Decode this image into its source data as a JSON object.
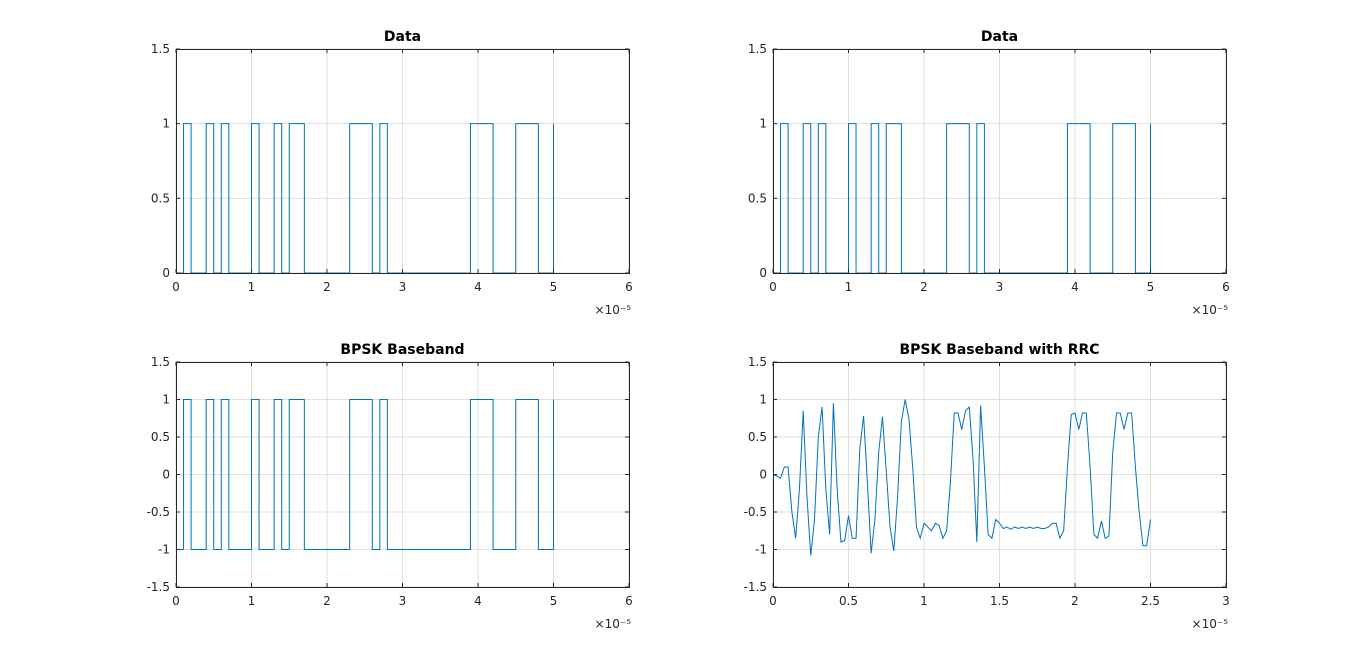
{
  "figure": {
    "background": "#ffffff",
    "axes_color": "#262626",
    "grid_color": "#dfdfdf",
    "line_color": "#0072bd"
  },
  "chart_data": [
    {
      "type": "line",
      "style": "stairs",
      "title": "Data",
      "xlabel": "",
      "ylabel": "",
      "xlim": [
        0,
        6e-05
      ],
      "ylim": [
        0,
        1.5
      ],
      "x_exponent_label": "×10⁻⁵",
      "grid": true,
      "xticks": [
        0,
        1e-05,
        2e-05,
        3e-05,
        4e-05,
        5e-05,
        6e-05
      ],
      "xtick_labels": [
        "0",
        "1",
        "2",
        "3",
        "4",
        "5",
        "6"
      ],
      "yticks": [
        0,
        0.5,
        1,
        1.5
      ],
      "ytick_labels": [
        "0",
        "0.5",
        "1",
        "1.5"
      ],
      "series": [
        {
          "x": [
            0,
            1e-06,
            2e-06,
            3e-06,
            4e-06,
            5e-06,
            6e-06,
            7e-06,
            8e-06,
            9e-06,
            1e-05,
            1.1e-05,
            1.2e-05,
            1.3e-05,
            1.4e-05,
            1.5e-05,
            1.6e-05,
            1.7e-05,
            1.8e-05,
            1.9e-05,
            2e-05,
            2.1e-05,
            2.2e-05,
            2.3e-05,
            2.4e-05,
            2.5e-05,
            2.6e-05,
            2.7e-05,
            2.8e-05,
            2.9e-05,
            3e-05,
            3.1e-05,
            3.2e-05,
            3.3e-05,
            3.4e-05,
            3.5e-05,
            3.6e-05,
            3.7e-05,
            3.8e-05,
            3.9e-05,
            4e-05,
            4.1e-05,
            4.2e-05,
            4.3e-05,
            4.4e-05,
            4.5e-05,
            4.6e-05,
            4.7e-05,
            4.8e-05,
            4.9e-05,
            5e-05
          ],
          "y": [
            0,
            1,
            0,
            0,
            1,
            0,
            1,
            0,
            0,
            0,
            1,
            0,
            0,
            1,
            0,
            1,
            1,
            0,
            0,
            0,
            0,
            0,
            0,
            1,
            1,
            1,
            0,
            1,
            0,
            0,
            0,
            0,
            0,
            0,
            0,
            0,
            0,
            0,
            0,
            1,
            1,
            1,
            0,
            0,
            0,
            1,
            1,
            1,
            0,
            0,
            1
          ]
        }
      ]
    },
    {
      "type": "line",
      "style": "stairs",
      "title": "Data",
      "xlabel": "",
      "ylabel": "",
      "xlim": [
        0,
        6e-05
      ],
      "ylim": [
        0,
        1.5
      ],
      "x_exponent_label": "×10⁻⁵",
      "grid": true,
      "xticks": [
        0,
        1e-05,
        2e-05,
        3e-05,
        4e-05,
        5e-05,
        6e-05
      ],
      "xtick_labels": [
        "0",
        "1",
        "2",
        "3",
        "4",
        "5",
        "6"
      ],
      "yticks": [
        0,
        0.5,
        1,
        1.5
      ],
      "ytick_labels": [
        "0",
        "0.5",
        "1",
        "1.5"
      ],
      "series": [
        {
          "x": [
            0,
            1e-06,
            2e-06,
            3e-06,
            4e-06,
            5e-06,
            6e-06,
            7e-06,
            8e-06,
            9e-06,
            1e-05,
            1.1e-05,
            1.2e-05,
            1.3e-05,
            1.4e-05,
            1.5e-05,
            1.6e-05,
            1.7e-05,
            1.8e-05,
            1.9e-05,
            2e-05,
            2.1e-05,
            2.2e-05,
            2.3e-05,
            2.4e-05,
            2.5e-05,
            2.6e-05,
            2.7e-05,
            2.8e-05,
            2.9e-05,
            3e-05,
            3.1e-05,
            3.2e-05,
            3.3e-05,
            3.4e-05,
            3.5e-05,
            3.6e-05,
            3.7e-05,
            3.8e-05,
            3.9e-05,
            4e-05,
            4.1e-05,
            4.2e-05,
            4.3e-05,
            4.4e-05,
            4.5e-05,
            4.6e-05,
            4.7e-05,
            4.8e-05,
            4.9e-05,
            5e-05
          ],
          "y": [
            0,
            1,
            0,
            0,
            1,
            0,
            1,
            0,
            0,
            0,
            1,
            0,
            0,
            1,
            0,
            1,
            1,
            0,
            0,
            0,
            0,
            0,
            0,
            1,
            1,
            1,
            0,
            1,
            0,
            0,
            0,
            0,
            0,
            0,
            0,
            0,
            0,
            0,
            0,
            1,
            1,
            1,
            0,
            0,
            0,
            1,
            1,
            1,
            0,
            0,
            1
          ]
        }
      ]
    },
    {
      "type": "line",
      "style": "stairs",
      "title": "BPSK Baseband",
      "xlabel": "",
      "ylabel": "",
      "xlim": [
        0,
        6e-05
      ],
      "ylim": [
        -1.5,
        1.5
      ],
      "x_exponent_label": "×10⁻⁵",
      "grid": true,
      "xticks": [
        0,
        1e-05,
        2e-05,
        3e-05,
        4e-05,
        5e-05,
        6e-05
      ],
      "xtick_labels": [
        "0",
        "1",
        "2",
        "3",
        "4",
        "5",
        "6"
      ],
      "yticks": [
        -1.5,
        -1,
        -0.5,
        0,
        0.5,
        1,
        1.5
      ],
      "ytick_labels": [
        "-1.5",
        "-1",
        "-0.5",
        "0",
        "0.5",
        "1",
        "1.5"
      ],
      "series": [
        {
          "x": [
            0,
            1e-06,
            2e-06,
            3e-06,
            4e-06,
            5e-06,
            6e-06,
            7e-06,
            8e-06,
            9e-06,
            1e-05,
            1.1e-05,
            1.2e-05,
            1.3e-05,
            1.4e-05,
            1.5e-05,
            1.6e-05,
            1.7e-05,
            1.8e-05,
            1.9e-05,
            2e-05,
            2.1e-05,
            2.2e-05,
            2.3e-05,
            2.4e-05,
            2.5e-05,
            2.6e-05,
            2.7e-05,
            2.8e-05,
            2.9e-05,
            3e-05,
            3.1e-05,
            3.2e-05,
            3.3e-05,
            3.4e-05,
            3.5e-05,
            3.6e-05,
            3.7e-05,
            3.8e-05,
            3.9e-05,
            4e-05,
            4.1e-05,
            4.2e-05,
            4.3e-05,
            4.4e-05,
            4.5e-05,
            4.6e-05,
            4.7e-05,
            4.8e-05,
            4.9e-05,
            5e-05
          ],
          "y": [
            -1,
            1,
            -1,
            -1,
            1,
            -1,
            1,
            -1,
            -1,
            -1,
            1,
            -1,
            -1,
            1,
            -1,
            1,
            1,
            -1,
            -1,
            -1,
            -1,
            -1,
            -1,
            1,
            1,
            1,
            -1,
            1,
            -1,
            -1,
            -1,
            -1,
            -1,
            -1,
            -1,
            -1,
            -1,
            -1,
            -1,
            1,
            1,
            1,
            -1,
            -1,
            -1,
            1,
            1,
            1,
            -1,
            -1,
            1
          ]
        }
      ]
    },
    {
      "type": "line",
      "style": "line",
      "title": "BPSK Baseband with RRC",
      "xlabel": "",
      "ylabel": "",
      "xlim": [
        0,
        3e-05
      ],
      "ylim": [
        -1.5,
        1.5
      ],
      "x_exponent_label": "×10⁻⁵",
      "grid": true,
      "xticks": [
        0,
        5e-06,
        1e-05,
        1.5e-05,
        2e-05,
        2.5e-05,
        3e-05
      ],
      "xtick_labels": [
        "0",
        "0.5",
        "1",
        "1.5",
        "2",
        "2.5",
        "3"
      ],
      "yticks": [
        -1.5,
        -1,
        -0.5,
        0,
        0.5,
        1,
        1.5
      ],
      "ytick_labels": [
        "-1.5",
        "-1",
        "-0.5",
        "0",
        "0.5",
        "1",
        "1.5"
      ],
      "series": [
        {
          "x": [
            0,
            2.5e-07,
            5e-07,
            7.5e-07,
            1e-06,
            1.25e-06,
            1.5e-06,
            1.75e-06,
            2e-06,
            2.25e-06,
            2.5e-06,
            2.75e-06,
            3e-06,
            3.25e-06,
            3.5e-06,
            3.75e-06,
            4e-06,
            4.25e-06,
            4.5e-06,
            4.75e-06,
            5e-06,
            5.25e-06,
            5.5e-06,
            5.75e-06,
            6e-06,
            6.25e-06,
            6.5e-06,
            6.75e-06,
            7e-06,
            7.25e-06,
            7.5e-06,
            7.75e-06,
            8e-06,
            8.25e-06,
            8.5e-06,
            8.75e-06,
            9e-06,
            9.25e-06,
            9.5e-06,
            9.75e-06,
            1e-05,
            1.025e-05,
            1.05e-05,
            1.075e-05,
            1.1e-05,
            1.125e-05,
            1.15e-05,
            1.175e-05,
            1.2e-05,
            1.225e-05,
            1.25e-05,
            1.275e-05,
            1.3e-05,
            1.325e-05,
            1.35e-05,
            1.375e-05,
            1.4e-05,
            1.425e-05,
            1.45e-05,
            1.475e-05,
            1.5e-05,
            1.525e-05,
            1.55e-05,
            1.575e-05,
            1.6e-05,
            1.625e-05,
            1.65e-05,
            1.675e-05,
            1.7e-05,
            1.725e-05,
            1.75e-05,
            1.775e-05,
            1.8e-05,
            1.825e-05,
            1.85e-05,
            1.875e-05,
            1.9e-05,
            1.925e-05,
            1.95e-05,
            1.975e-05,
            2e-05,
            2.025e-05,
            2.05e-05,
            2.075e-05,
            2.1e-05,
            2.125e-05,
            2.15e-05,
            2.175e-05,
            2.2e-05,
            2.225e-05,
            2.25e-05,
            2.275e-05,
            2.3e-05,
            2.325e-05,
            2.35e-05,
            2.375e-05,
            2.4e-05,
            2.425e-05,
            2.45e-05,
            2.475e-05,
            2.5e-05
          ],
          "y": [
            0,
            -0.02,
            -0.05,
            0.1,
            0.1,
            -0.5,
            -0.85,
            -0.2,
            0.85,
            -0.3,
            -1.08,
            -0.6,
            0.5,
            0.9,
            -0.2,
            -0.8,
            0.95,
            -0.2,
            -0.9,
            -0.88,
            -0.55,
            -0.85,
            -0.85,
            0.35,
            0.78,
            -0.1,
            -1.05,
            -0.6,
            0.3,
            0.77,
            0.05,
            -0.7,
            -1.02,
            -0.3,
            0.7,
            1.0,
            0.75,
            0.1,
            -0.7,
            -0.85,
            -0.65,
            -0.7,
            -0.75,
            -0.65,
            -0.68,
            -0.85,
            -0.75,
            -0.1,
            0.82,
            0.82,
            0.6,
            0.85,
            0.9,
            0.2,
            -0.9,
            0.92,
            0.1,
            -0.8,
            -0.85,
            -0.6,
            -0.65,
            -0.72,
            -0.7,
            -0.73,
            -0.7,
            -0.72,
            -0.7,
            -0.72,
            -0.7,
            -0.72,
            -0.7,
            -0.72,
            -0.72,
            -0.7,
            -0.65,
            -0.65,
            -0.85,
            -0.75,
            0.1,
            0.8,
            0.82,
            0.6,
            0.82,
            0.82,
            0.1,
            -0.8,
            -0.85,
            -0.62,
            -0.85,
            -0.82,
            0.3,
            0.82,
            0.82,
            0.6,
            0.82,
            0.82,
            0.1,
            -0.5,
            -0.95,
            -0.95,
            -0.6
          ]
        }
      ]
    }
  ]
}
